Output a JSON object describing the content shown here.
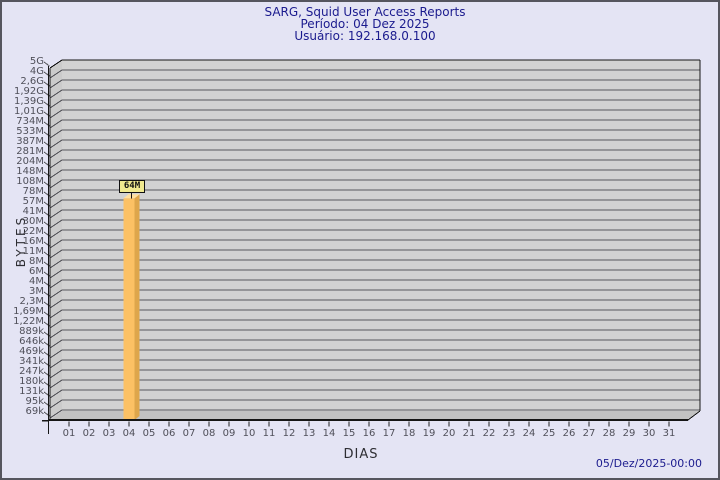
{
  "header": {
    "title": "SARG, Squid User Access Reports",
    "period": "Período: 04 Dez 2025",
    "user": "Usuário: 192.168.0.100"
  },
  "footer": {
    "generated": "05/Dez/2025-00:00"
  },
  "colors": {
    "page_bg": "#E4E4F4",
    "title_text": "#1B1B8E",
    "plot_bg": "#D2D2D2",
    "wall_bg": "#CBCBCB",
    "floor_bg": "#C2C2C2",
    "grid_line": "#58585E",
    "edge_line": "#161616",
    "bar_front": "#FCC164",
    "bar_side": "#DEA64B",
    "bar_top": "#FFE0A0",
    "bar_label_bg": "#F0E98F"
  },
  "chart_data": {
    "type": "bar",
    "title": "SARG, Squid User Access Reports",
    "subtitle": [
      "Período: 04 Dez 2025",
      "Usuário: 192.168.0.100"
    ],
    "xlabel": "DIAS",
    "ylabel": "BYTES",
    "y_scale": "log",
    "grid": true,
    "legend": null,
    "y_ticks": [
      "5G",
      "4G",
      "2,6G",
      "1,92G",
      "1,39G",
      "1,01G",
      "734M",
      "533M",
      "387M",
      "281M",
      "204M",
      "148M",
      "108M",
      "78M",
      "57M",
      "41M",
      "30M",
      "22M",
      "16M",
      "11M",
      "8M",
      "6M",
      "4M",
      "3M",
      "2,3M",
      "1,69M",
      "1,22M",
      "889k",
      "646k",
      "469k",
      "341k",
      "247k",
      "180k",
      "131k",
      "95k",
      "69k"
    ],
    "x_ticks": [
      "01",
      "02",
      "03",
      "04",
      "05",
      "06",
      "07",
      "08",
      "09",
      "10",
      "11",
      "12",
      "13",
      "14",
      "15",
      "16",
      "17",
      "18",
      "19",
      "20",
      "21",
      "22",
      "23",
      "24",
      "25",
      "26",
      "27",
      "28",
      "29",
      "30",
      "31"
    ],
    "bars": [
      {
        "day": "04",
        "label": "64M",
        "value_bytes": 64000000
      }
    ]
  }
}
